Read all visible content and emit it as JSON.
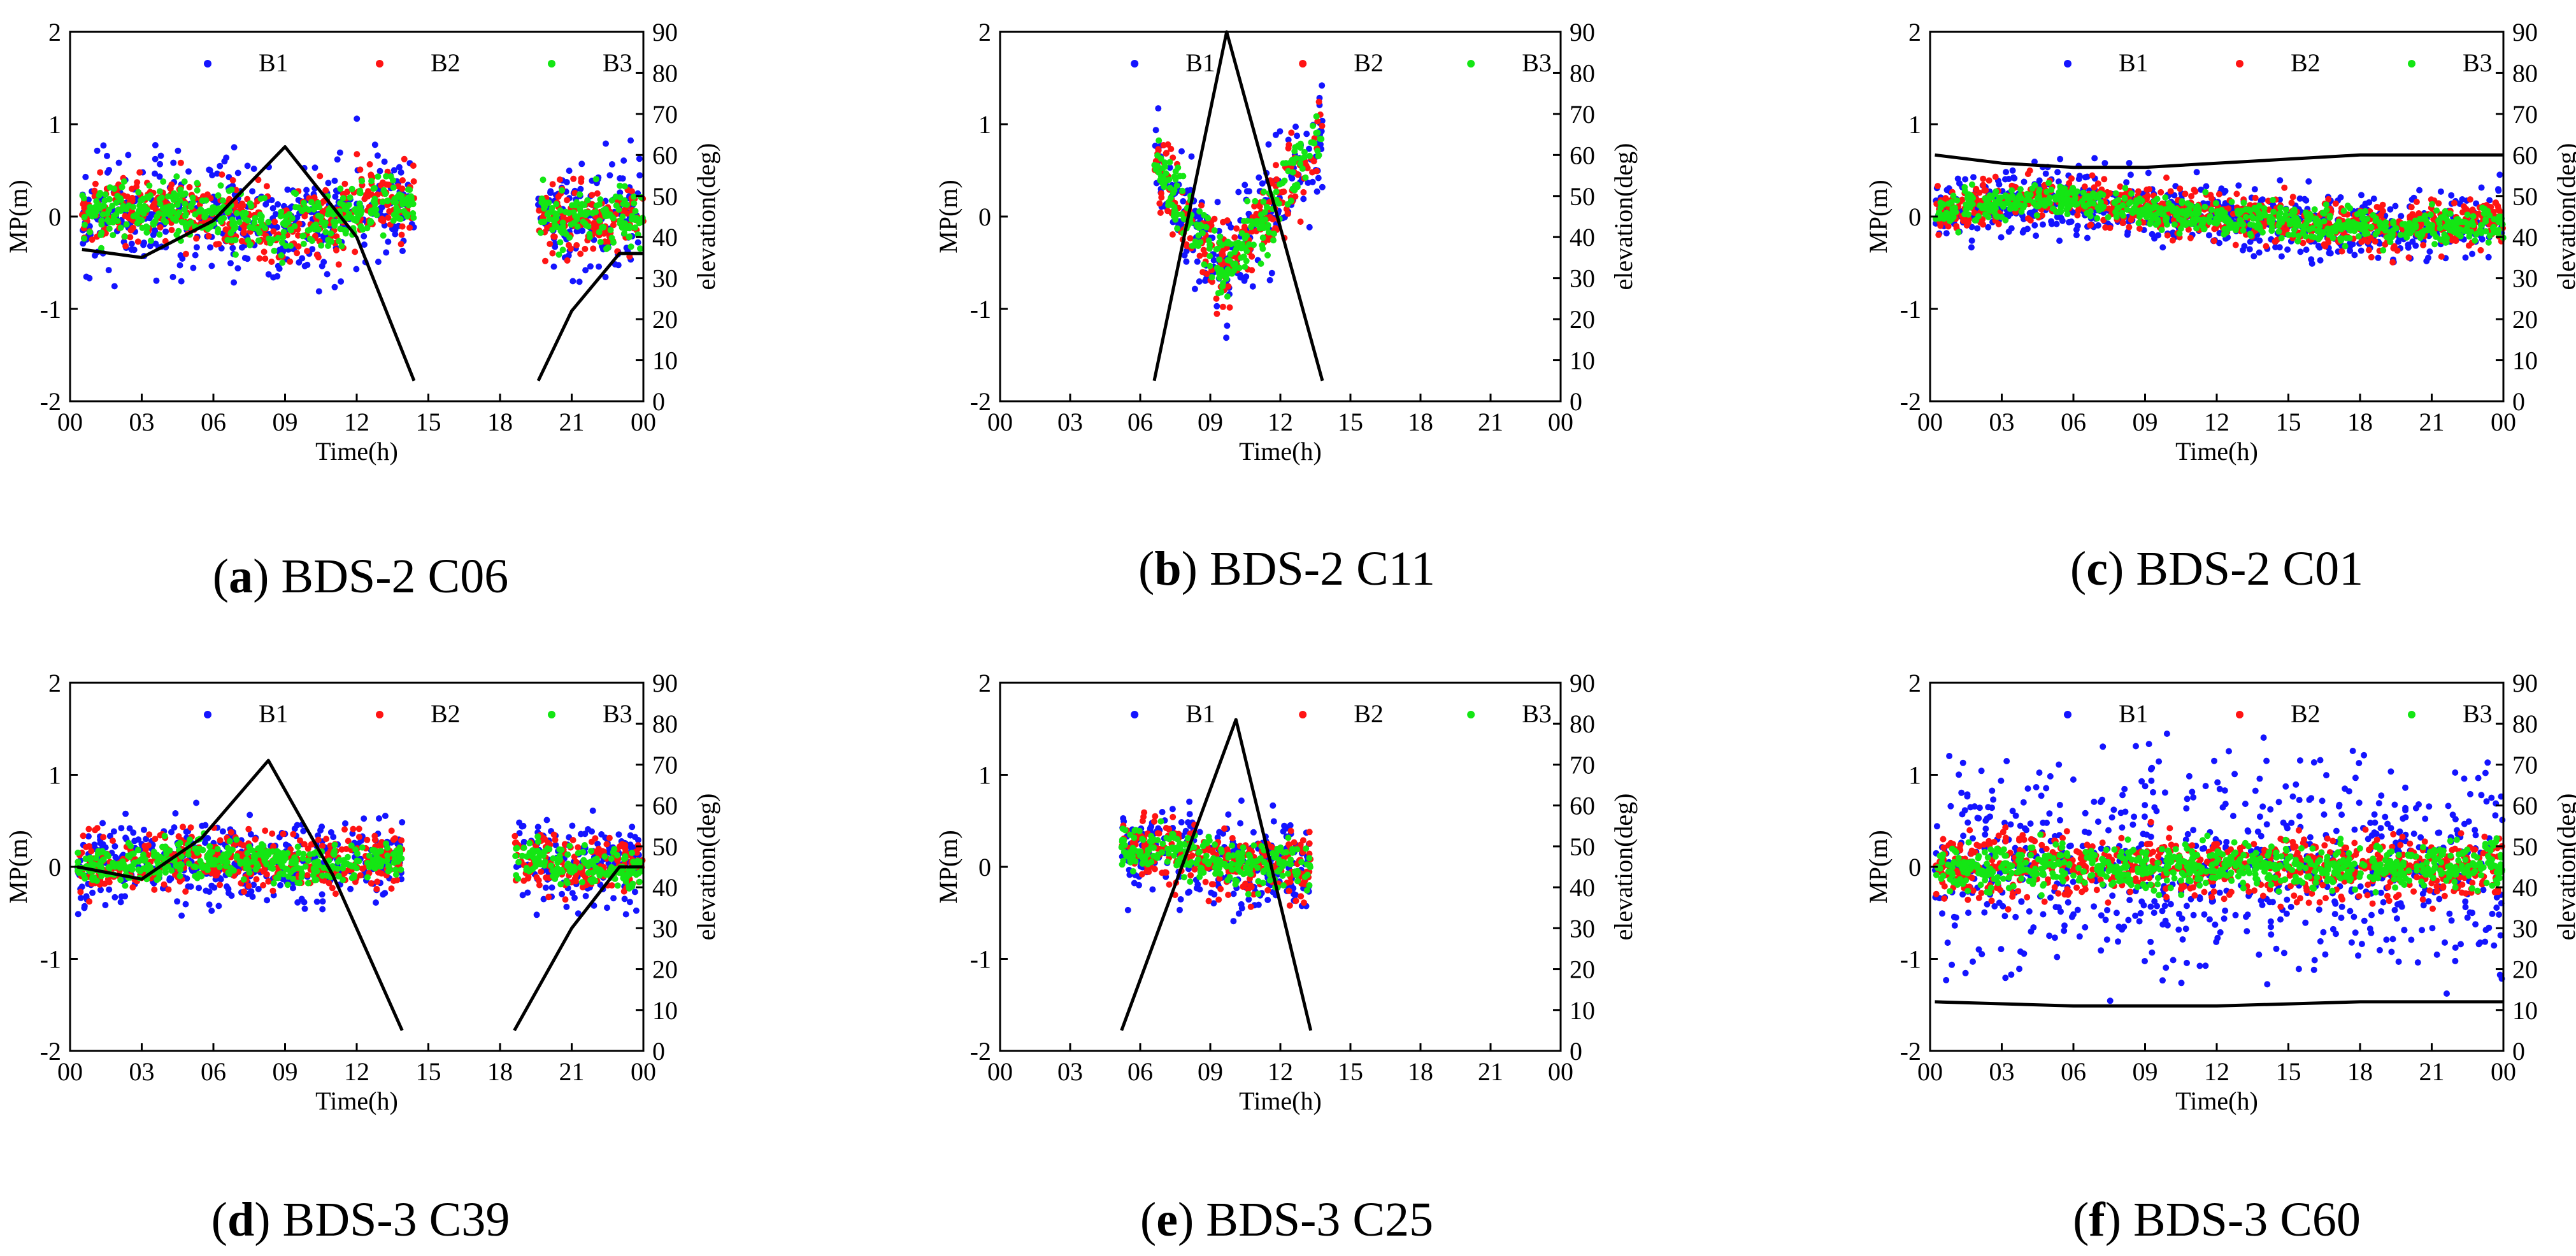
{
  "figure": {
    "captions": [
      {
        "paren_open": "(",
        "letter": "a",
        "paren_close": ")",
        "text": " BDS-2 C06"
      },
      {
        "paren_open": "(",
        "letter": "b",
        "paren_close": ")",
        "text": " BDS-2 C11"
      },
      {
        "paren_open": "(",
        "letter": "c",
        "paren_close": ")",
        "text": " BDS-2 C01"
      },
      {
        "paren_open": "(",
        "letter": "d",
        "paren_close": ")",
        "text": " BDS-3 C39"
      },
      {
        "paren_open": "(",
        "letter": "e",
        "paren_close": ")",
        "text": " BDS-3 C25"
      },
      {
        "paren_open": "(",
        "letter": "f",
        "paren_close": ")",
        "text": " BDS-3 C60"
      }
    ]
  },
  "chart_data": [
    {
      "type": "scatter",
      "panel": "a",
      "title": "BDS-2 C06",
      "xlabel": "Time(h)",
      "ylabel": "MP(m)",
      "y2label": "elevation(deg)",
      "xlim": [
        0,
        24
      ],
      "ylim": [
        -2,
        2
      ],
      "y2lim": [
        0,
        90
      ],
      "xticks": [
        "00",
        "03",
        "06",
        "09",
        "12",
        "15",
        "18",
        "21",
        "00"
      ],
      "yticks": [
        "-2",
        "-1",
        "0",
        "1",
        "2"
      ],
      "y2ticks": [
        "0",
        "10",
        "20",
        "30",
        "40",
        "50",
        "60",
        "70",
        "80",
        "90"
      ],
      "legend": [
        "B1",
        "B2",
        "B3"
      ],
      "legend_position": "top",
      "series_colors": {
        "B1": "#1414ff",
        "B2": "#ff1414",
        "B3": "#14e614",
        "elevation": "#000000"
      },
      "spread": {
        "B1": 0.32,
        "B2": 0.2,
        "B3": 0.15
      },
      "segments": [
        [
          0.5,
          14.4
        ],
        [
          19.6,
          24
        ]
      ],
      "elevation": {
        "x": [
          0.5,
          3,
          6,
          9,
          12,
          14.4,
          19.6,
          21,
          23,
          24
        ],
        "y": [
          37,
          35,
          44,
          62,
          40,
          5,
          5,
          22,
          36,
          36
        ]
      },
      "mp_mean": {
        "x": [
          0.5,
          6,
          9,
          12,
          14.4,
          19.6,
          24
        ],
        "y": [
          0.05,
          0.05,
          -0.15,
          0.1,
          0.2,
          0,
          0
        ]
      }
    },
    {
      "type": "scatter",
      "panel": "b",
      "title": "BDS-2 C11",
      "xlabel": "Time(h)",
      "ylabel": "MP(m)",
      "y2label": "elevation(deg)",
      "xlim": [
        0,
        24
      ],
      "ylim": [
        -2,
        2
      ],
      "y2lim": [
        0,
        90
      ],
      "xticks": [
        "00",
        "03",
        "06",
        "09",
        "12",
        "15",
        "18",
        "21",
        "00"
      ],
      "yticks": [
        "-2",
        "-1",
        "0",
        "1",
        "2"
      ],
      "y2ticks": [
        "0",
        "10",
        "20",
        "30",
        "40",
        "50",
        "60",
        "70",
        "80",
        "90"
      ],
      "legend": [
        "B1",
        "B2",
        "B3"
      ],
      "legend_position": "top",
      "series_colors": {
        "B1": "#1414ff",
        "B2": "#ff1414",
        "B3": "#14e614",
        "elevation": "#000000"
      },
      "spread": {
        "B1": 0.3,
        "B2": 0.22,
        "B3": 0.17
      },
      "segments": [
        [
          6.6,
          13.8
        ]
      ],
      "elevation": {
        "x": [
          6.6,
          9.7,
          13.8
        ],
        "y": [
          5,
          90,
          5
        ]
      },
      "mp_mean": {
        "x": [
          6.6,
          8,
          9.7,
          12,
          13.8
        ],
        "y": [
          0.6,
          0.0,
          -0.55,
          0.2,
          0.9
        ]
      }
    },
    {
      "type": "scatter",
      "panel": "c",
      "title": "BDS-2 C01",
      "xlabel": "Time(h)",
      "ylabel": "MP(m)",
      "y2label": "elevation(deg)",
      "xlim": [
        0,
        24
      ],
      "ylim": [
        -2,
        2
      ],
      "y2lim": [
        0,
        90
      ],
      "xticks": [
        "00",
        "03",
        "06",
        "09",
        "12",
        "15",
        "18",
        "21",
        "00"
      ],
      "yticks": [
        "-2",
        "-1",
        "0",
        "1",
        "2"
      ],
      "y2ticks": [
        "0",
        "10",
        "20",
        "30",
        "40",
        "50",
        "60",
        "70",
        "80",
        "90"
      ],
      "legend": [
        "B1",
        "B2",
        "B3"
      ],
      "legend_position": "top",
      "series_colors": {
        "B1": "#1414ff",
        "B2": "#ff1414",
        "B3": "#14e614",
        "elevation": "#000000"
      },
      "spread": {
        "B1": 0.17,
        "B2": 0.12,
        "B3": 0.09
      },
      "segments": [
        [
          0.2,
          24
        ]
      ],
      "elevation": {
        "x": [
          0.2,
          3,
          6,
          9,
          12,
          15,
          18,
          21,
          24
        ],
        "y": [
          60,
          58,
          57,
          57,
          58,
          59,
          60,
          60,
          60
        ]
      },
      "mp_mean": {
        "x": [
          0.2,
          5,
          12,
          19,
          24
        ],
        "y": [
          0.05,
          0.2,
          0.0,
          -0.15,
          -0.05
        ]
      }
    },
    {
      "type": "scatter",
      "panel": "d",
      "title": "BDS-3 C39",
      "xlabel": "Time(h)",
      "ylabel": "MP(m)",
      "y2label": "elevation(deg)",
      "xlim": [
        0,
        24
      ],
      "ylim": [
        -2,
        2
      ],
      "y2lim": [
        0,
        90
      ],
      "xticks": [
        "00",
        "03",
        "06",
        "09",
        "12",
        "15",
        "18",
        "21",
        "00"
      ],
      "yticks": [
        "-2",
        "-1",
        "0",
        "1",
        "2"
      ],
      "y2ticks": [
        "0",
        "10",
        "20",
        "30",
        "40",
        "50",
        "60",
        "70",
        "80",
        "90"
      ],
      "legend": [
        "B1",
        "B2",
        "B3"
      ],
      "legend_position": "top",
      "series_colors": {
        "B1": "#1414ff",
        "B2": "#ff1414",
        "B3": "#14e614",
        "elevation": "#000000"
      },
      "spread": {
        "B1": 0.24,
        "B2": 0.15,
        "B3": 0.1
      },
      "segments": [
        [
          0.3,
          13.9
        ],
        [
          18.6,
          24
        ]
      ],
      "elevation": {
        "x": [
          0.3,
          3,
          5.5,
          8.3,
          11,
          13.9,
          18.6,
          21,
          23,
          24
        ],
        "y": [
          45,
          42,
          52,
          71,
          43,
          5,
          5,
          30,
          45,
          45
        ]
      },
      "mp_mean": {
        "x": [
          0.3,
          6,
          10,
          13.9,
          18.6,
          21,
          24
        ],
        "y": [
          0.0,
          0.08,
          0.02,
          0.1,
          0.1,
          0.0,
          0.0
        ]
      }
    },
    {
      "type": "scatter",
      "panel": "e",
      "title": "BDS-3 C25",
      "xlabel": "Time(h)",
      "ylabel": "MP(m)",
      "y2label": "elevation(deg)",
      "xlim": [
        0,
        24
      ],
      "ylim": [
        -2,
        2
      ],
      "y2lim": [
        0,
        90
      ],
      "xticks": [
        "00",
        "03",
        "06",
        "09",
        "12",
        "15",
        "18",
        "21",
        "00"
      ],
      "yticks": [
        "-2",
        "-1",
        "0",
        "1",
        "2"
      ],
      "y2ticks": [
        "0",
        "10",
        "20",
        "30",
        "40",
        "50",
        "60",
        "70",
        "80",
        "90"
      ],
      "legend": [
        "B1",
        "B2",
        "B3"
      ],
      "legend_position": "top",
      "series_colors": {
        "B1": "#1414ff",
        "B2": "#ff1414",
        "B3": "#14e614",
        "elevation": "#000000"
      },
      "spread": {
        "B1": 0.25,
        "B2": 0.17,
        "B3": 0.13
      },
      "segments": [
        [
          5.2,
          13.3
        ]
      ],
      "elevation": {
        "x": [
          5.2,
          10.1,
          13.3
        ],
        "y": [
          5,
          81,
          5
        ]
      },
      "mp_mean": {
        "x": [
          5.2,
          7,
          10,
          13.3
        ],
        "y": [
          0.2,
          0.2,
          0.0,
          0.0
        ]
      }
    },
    {
      "type": "scatter",
      "panel": "f",
      "title": "BDS-3 C60",
      "xlabel": "Time(h)",
      "ylabel": "MP(m)",
      "y2label": "elevation(deg)",
      "xlim": [
        0,
        24
      ],
      "ylim": [
        -2,
        2
      ],
      "y2lim": [
        0,
        90
      ],
      "xticks": [
        "00",
        "03",
        "06",
        "09",
        "12",
        "15",
        "18",
        "21",
        "00"
      ],
      "yticks": [
        "-2",
        "-1",
        "0",
        "1",
        "2"
      ],
      "y2ticks": [
        "0",
        "10",
        "20",
        "30",
        "40",
        "50",
        "60",
        "70",
        "80",
        "90"
      ],
      "legend": [
        "B1",
        "B2",
        "B3"
      ],
      "legend_position": "top",
      "series_colors": {
        "B1": "#1414ff",
        "B2": "#ff1414",
        "B3": "#14e614",
        "elevation": "#000000"
      },
      "spread": {
        "B1": 0.55,
        "B2": 0.17,
        "B3": 0.12
      },
      "segments": [
        [
          0.2,
          24
        ]
      ],
      "elevation": {
        "x": [
          0.2,
          6,
          12,
          18,
          24
        ],
        "y": [
          12,
          11,
          11,
          12,
          12
        ]
      },
      "mp_mean": {
        "x": [
          0.2,
          24
        ],
        "y": [
          0.0,
          0.0
        ]
      }
    }
  ]
}
